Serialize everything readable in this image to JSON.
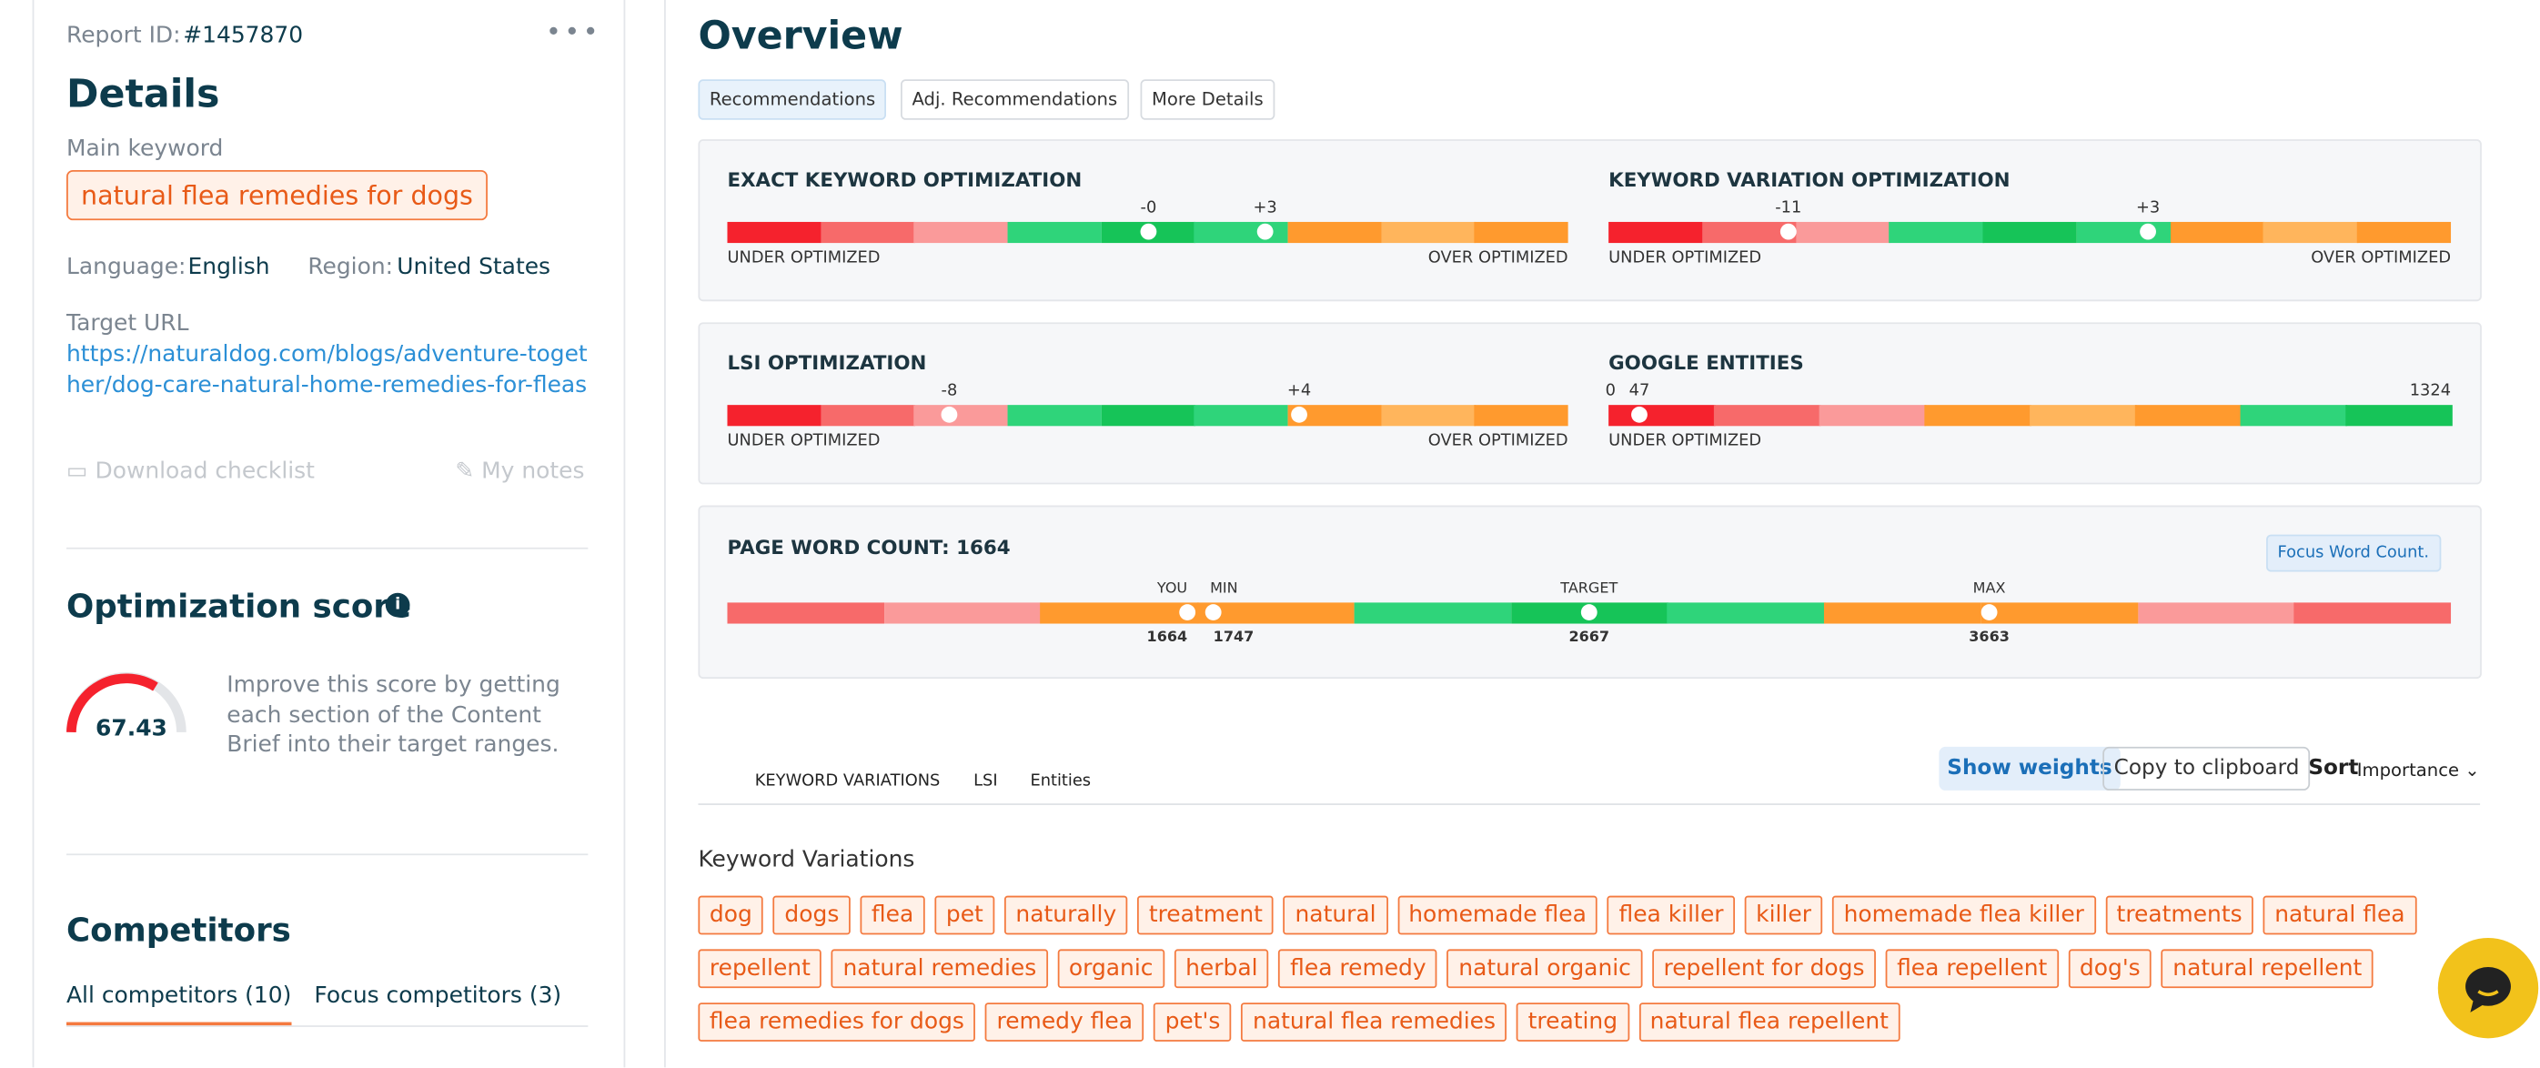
{
  "sidebar": {
    "report_id_label": "Report ID:",
    "report_id": "#1457870",
    "details_title": "Details",
    "main_keyword_label": "Main keyword",
    "main_keyword": "natural flea remedies for dogs",
    "language_label": "Language:",
    "language": "English",
    "region_label": "Region:",
    "region": "United States",
    "target_url_label": "Target URL",
    "target_url": "https://naturaldog.com/blogs/adventure-together/dog-care-natural-home-remedies-for-fleas",
    "download_checklist": "Download checklist",
    "my_notes": "My notes",
    "optimization_title": "Optimization score",
    "score": "67.43",
    "score_description": "Improve this score by getting each section of the Content Brief into their target ranges.",
    "competitors_title": "Competitors",
    "competitor_tabs": [
      "All competitors (10)",
      "Focus competitors (3)"
    ]
  },
  "overview": {
    "title": "Overview",
    "tabs": [
      "Recommendations",
      "Adj. Recommendations",
      "More Details"
    ],
    "panels": [
      {
        "metrics": [
          {
            "title": "EXACT KEYWORD OPTIMIZATION",
            "markers": [
              "-0",
              "+3"
            ],
            "left_label": "UNDER OPTIMIZED",
            "right_label": "OVER OPTIMIZED"
          },
          {
            "title": "KEYWORD VARIATION OPTIMIZATION",
            "markers": [
              "-11",
              "+3"
            ],
            "left_label": "UNDER OPTIMIZED",
            "right_label": "OVER OPTIMIZED"
          }
        ]
      },
      {
        "metrics": [
          {
            "title": "LSI OPTIMIZATION",
            "markers": [
              "-8",
              "+4"
            ],
            "left_label": "UNDER OPTIMIZED",
            "right_label": "OVER OPTIMIZED"
          },
          {
            "title": "GOOGLE ENTITIES",
            "scale_start": "0",
            "markers": [
              "47"
            ],
            "scale_end": "1324",
            "left_label": "UNDER OPTIMIZED"
          }
        ]
      }
    ],
    "word_count": {
      "title": "PAGE WORD COUNT: 1664",
      "button": "Focus Word Count.",
      "markers": [
        {
          "label": "YOU",
          "value": "1664"
        },
        {
          "label": "MIN",
          "value": "1747"
        },
        {
          "label": "TARGET",
          "value": "2667"
        },
        {
          "label": "MAX",
          "value": "3663"
        }
      ]
    }
  },
  "keywords": {
    "tabs": [
      "KEYWORD VARIATIONS",
      "LSI",
      "Entities"
    ],
    "show_weights": "Show weights",
    "copy": "Copy to clipboard",
    "sort_label": "Sort",
    "sort_value": "Importance",
    "section_title": "Keyword Variations",
    "items": [
      "dog",
      "dogs",
      "flea",
      "pet",
      "naturally",
      "treatment",
      "natural",
      "homemade flea",
      "flea killer",
      "killer",
      "homemade flea killer",
      "treatments",
      "natural flea",
      "repellent",
      "natural remedies",
      "organic",
      "herbal",
      "flea remedy",
      "natural organic",
      "repellent for dogs",
      "flea repellent",
      "dog's",
      "natural repellent",
      "flea remedies for dogs",
      "remedy flea",
      "pet's",
      "natural flea remedies",
      "treating",
      "natural flea repellent"
    ]
  }
}
